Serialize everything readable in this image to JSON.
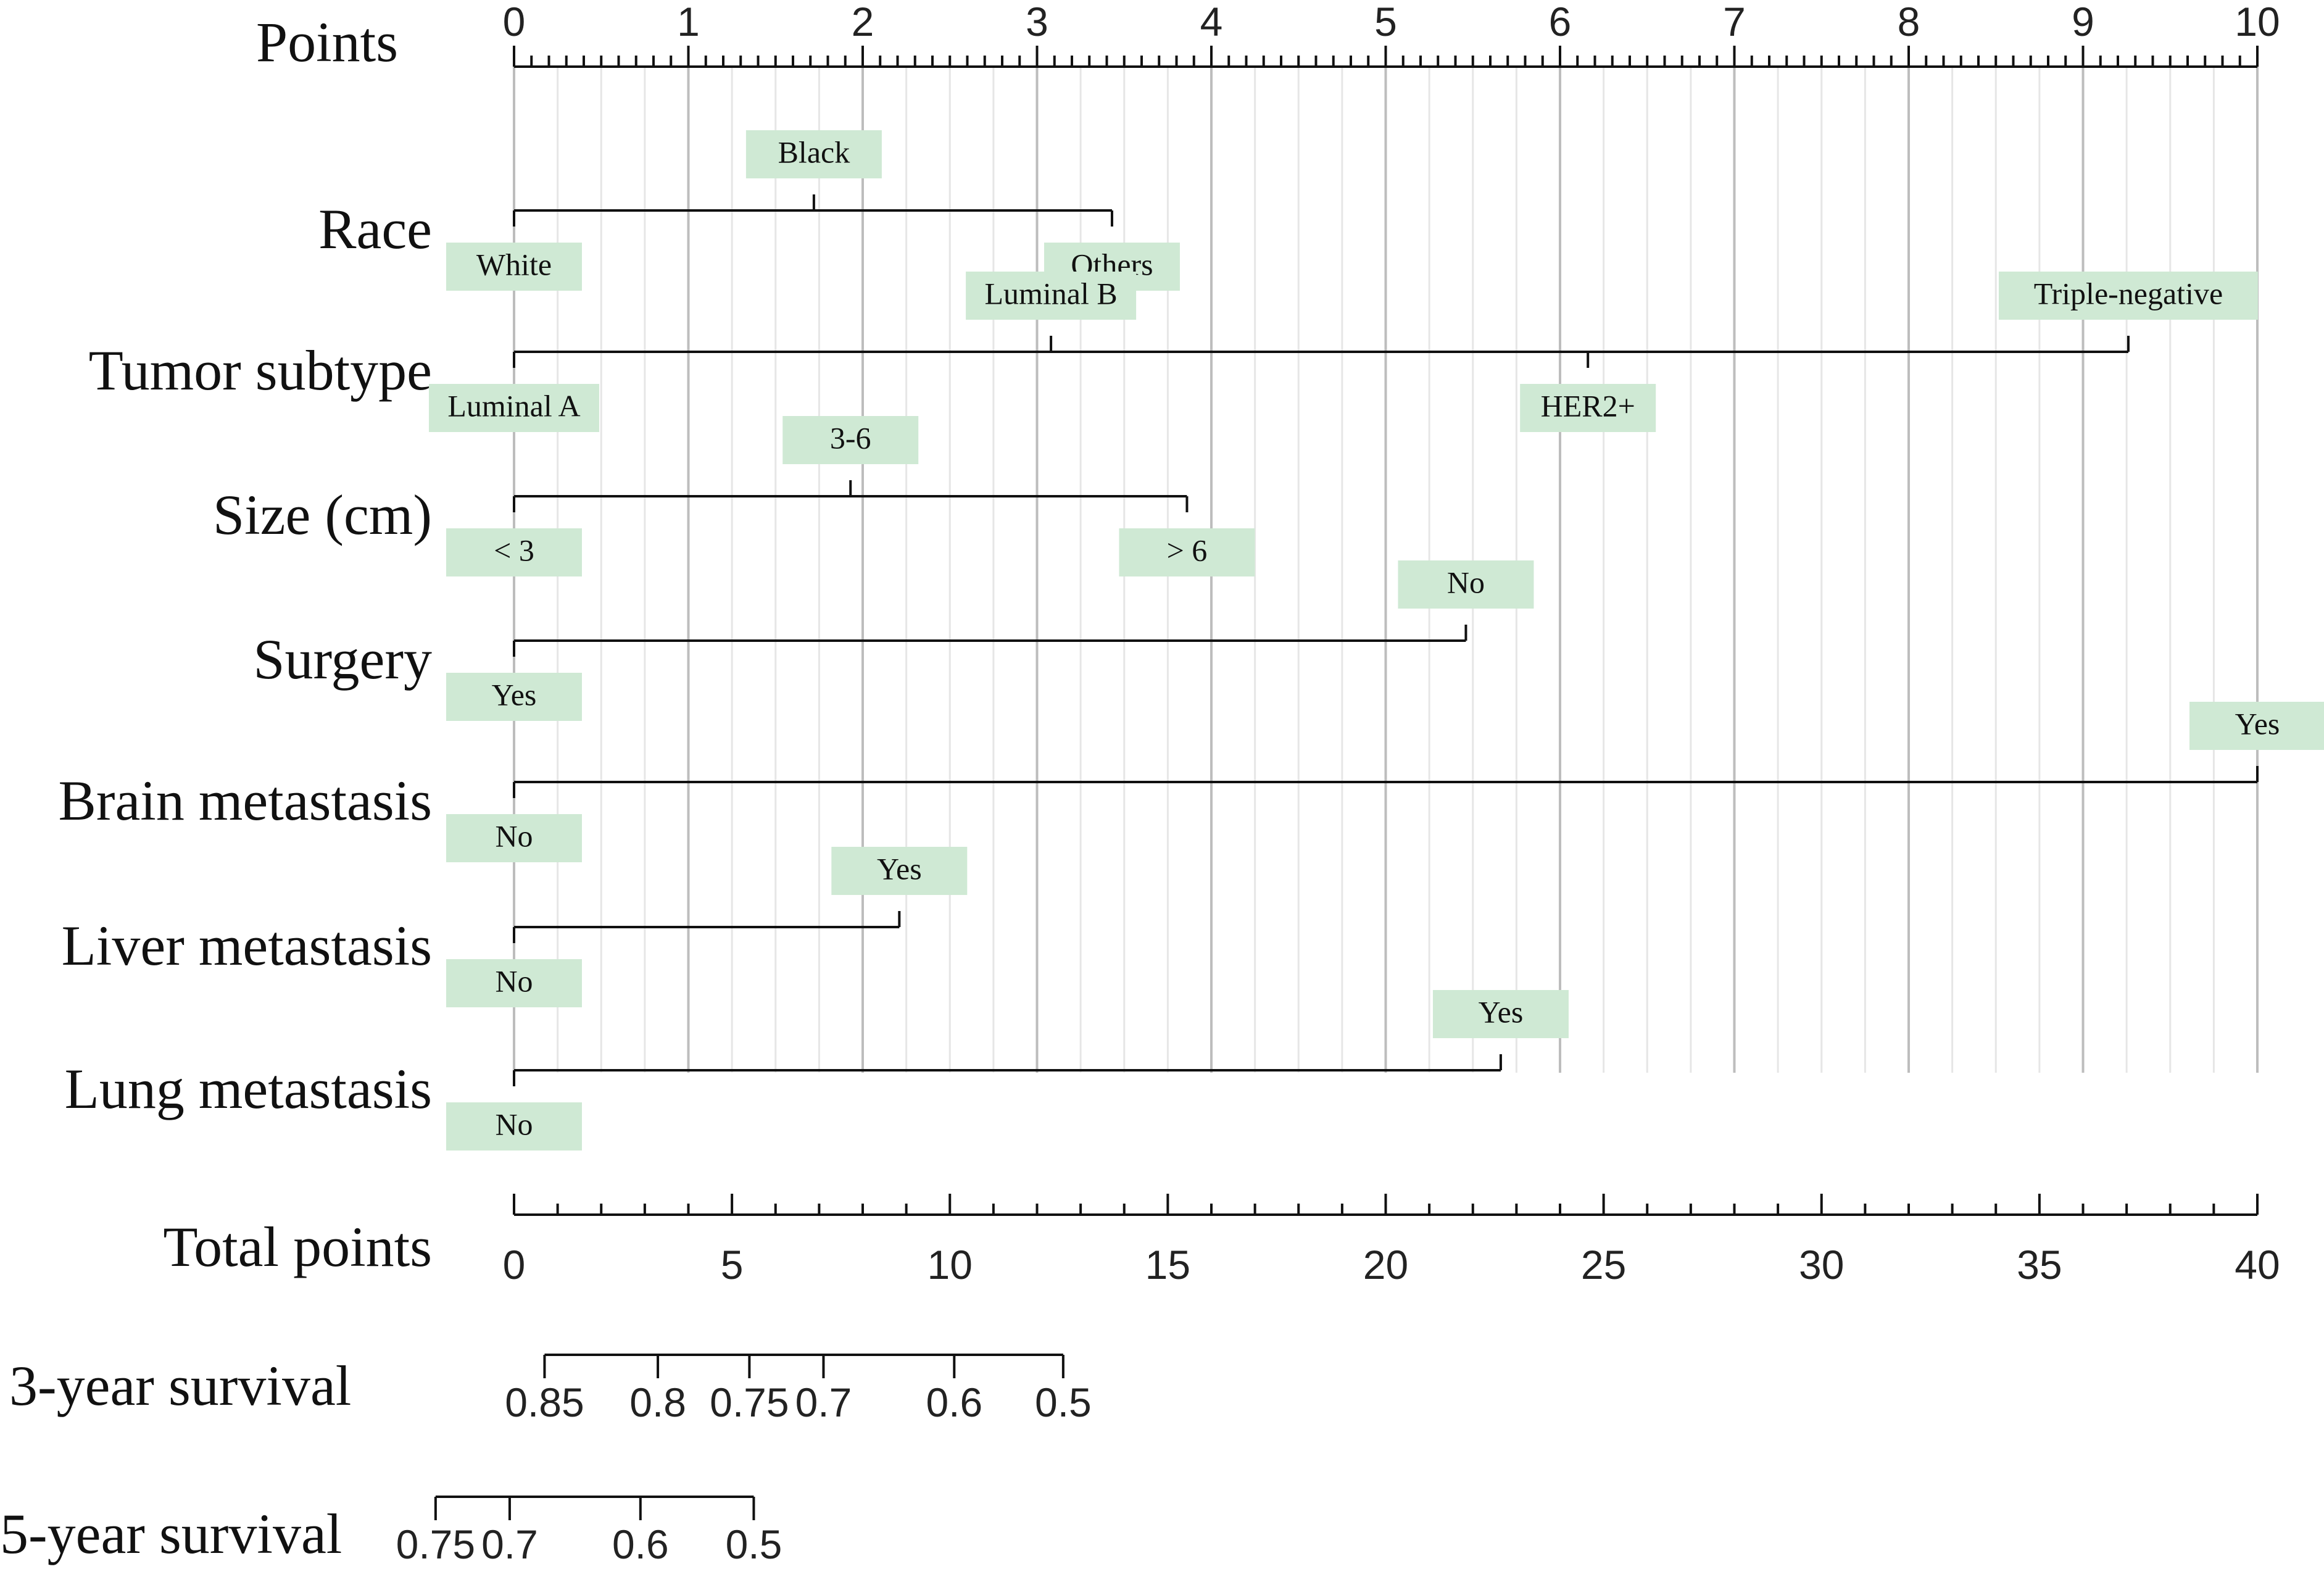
{
  "chart_data": {
    "type": "nomogram",
    "points_axis": {
      "label": "Points",
      "min": 0,
      "max": 10,
      "ticks": [
        "0",
        "1",
        "2",
        "3",
        "4",
        "5",
        "6",
        "7",
        "8",
        "9",
        "10"
      ],
      "minor_step": 0.25
    },
    "variables": [
      {
        "label": "Race",
        "categories": [
          {
            "name": "White",
            "points": 0,
            "side": "below"
          },
          {
            "name": "Black",
            "points": 1.72,
            "side": "above"
          },
          {
            "name": "Others",
            "points": 3.43,
            "side": "below"
          }
        ]
      },
      {
        "label": "Tumor subtype",
        "categories": [
          {
            "name": "Luminal A",
            "points": 0,
            "side": "below"
          },
          {
            "name": "Luminal B",
            "points": 3.08,
            "side": "above"
          },
          {
            "name": "HER2+",
            "points": 6.16,
            "side": "below"
          },
          {
            "name": "Triple-negative",
            "points": 9.26,
            "side": "above"
          }
        ]
      },
      {
        "label": "Size (cm)",
        "categories": [
          {
            "name": "< 3",
            "points": 0,
            "side": "below"
          },
          {
            "name": "3-6",
            "points": 1.93,
            "side": "above"
          },
          {
            "name": "> 6",
            "points": 3.86,
            "side": "below"
          }
        ]
      },
      {
        "label": "Surgery",
        "categories": [
          {
            "name": "Yes",
            "points": 0,
            "side": "below"
          },
          {
            "name": "No",
            "points": 5.46,
            "side": "above"
          }
        ]
      },
      {
        "label": "Brain metastasis",
        "categories": [
          {
            "name": "No",
            "points": 0,
            "side": "below"
          },
          {
            "name": "Yes",
            "points": 10,
            "side": "above"
          }
        ]
      },
      {
        "label": "Liver metastasis",
        "categories": [
          {
            "name": "No",
            "points": 0,
            "side": "below"
          },
          {
            "name": "Yes",
            "points": 2.21,
            "side": "above"
          }
        ]
      },
      {
        "label": "Lung metastasis",
        "categories": [
          {
            "name": "No",
            "points": 0,
            "side": "below"
          },
          {
            "name": "Yes",
            "points": 5.66,
            "side": "above"
          }
        ]
      }
    ],
    "total_points_axis": {
      "label": "Total points",
      "min": 0,
      "max": 40,
      "ticks": [
        "0",
        "5",
        "10",
        "15",
        "20",
        "25",
        "30",
        "35",
        "40"
      ],
      "minor_step": 1
    },
    "survival_scales": [
      {
        "label": "3-year survival",
        "ticks": [
          {
            "label": "0.85",
            "total_points": 0.7
          },
          {
            "label": "0.8",
            "total_points": 3.3
          },
          {
            "label": "0.75",
            "total_points": 5.4
          },
          {
            "label": "0.7",
            "total_points": 7.1
          },
          {
            "label": "0.6",
            "total_points": 10.1
          },
          {
            "label": "0.5",
            "total_points": 12.6
          }
        ]
      },
      {
        "label": "5-year survival",
        "ticks": [
          {
            "label": "0.75",
            "total_points": -1.8
          },
          {
            "label": "0.7",
            "total_points": -0.1
          },
          {
            "label": "0.6",
            "total_points": 2.9
          },
          {
            "label": "0.5",
            "total_points": 5.5
          }
        ]
      }
    ],
    "colors": {
      "label_box": "#cfe9d4",
      "line": "#111111",
      "grid_major": "#bdbdbd",
      "grid_minor": "#e6e6e6"
    }
  }
}
